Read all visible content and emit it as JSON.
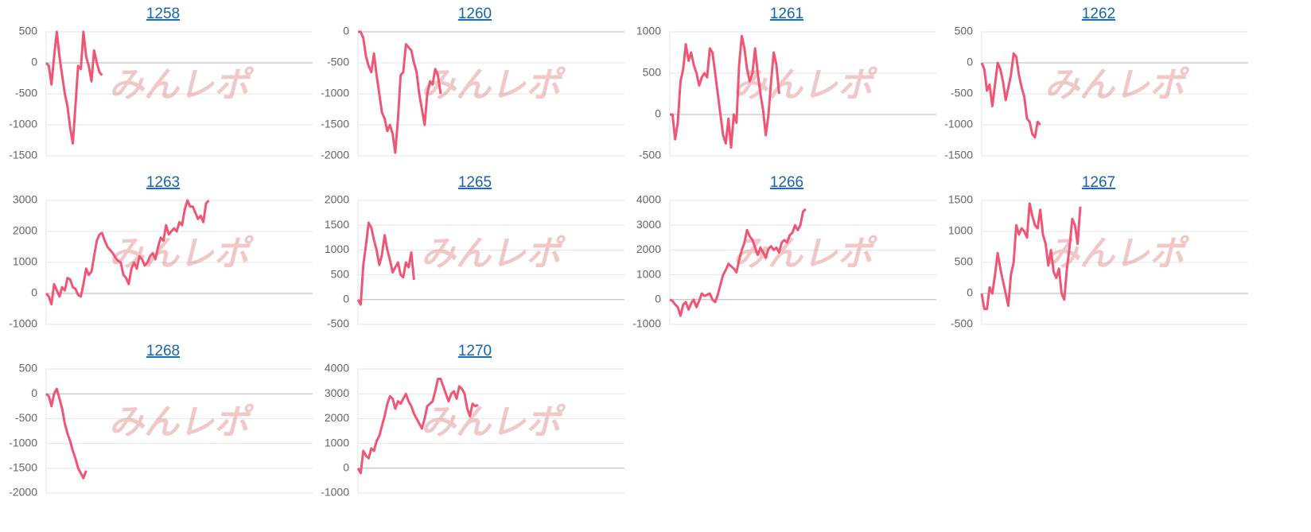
{
  "watermark": "みんレポ",
  "chart_data": [
    {
      "type": "line",
      "title": "1258",
      "color": "#ef5675",
      "xlim": [
        0,
        100
      ],
      "ylim": [
        -1500,
        500
      ],
      "yticks": [
        -1500,
        -1000,
        -500,
        0,
        500
      ],
      "values": [
        0,
        -50,
        -350,
        100,
        500,
        100,
        -200,
        -500,
        -700,
        -1050,
        -1300,
        -700,
        -50,
        -100,
        500,
        100,
        -50,
        -300,
        200,
        0,
        -150,
        -200
      ]
    },
    {
      "type": "line",
      "title": "1260",
      "color": "#ef5675",
      "xlim": [
        0,
        100
      ],
      "ylim": [
        -2000,
        0
      ],
      "yticks": [
        -2000,
        -1500,
        -1000,
        -500,
        0
      ],
      "values": [
        0,
        0,
        -100,
        -400,
        -550,
        -650,
        -350,
        -700,
        -1000,
        -1300,
        -1400,
        -1600,
        -1500,
        -1650,
        -1950,
        -1400,
        -700,
        -650,
        -200,
        -250,
        -300,
        -500,
        -650,
        -1000,
        -1250,
        -1500,
        -1000,
        -800,
        -850,
        -600,
        -700,
        -1000
      ]
    },
    {
      "type": "line",
      "title": "1261",
      "color": "#ef5675",
      "xlim": [
        0,
        100
      ],
      "ylim": [
        -500,
        1000
      ],
      "yticks": [
        -500,
        0,
        500,
        1000
      ],
      "values": [
        0,
        0,
        -300,
        -100,
        400,
        550,
        850,
        650,
        750,
        600,
        500,
        350,
        450,
        500,
        450,
        800,
        750,
        500,
        250,
        0,
        -250,
        -350,
        -50,
        -400,
        0,
        -100,
        600,
        950,
        800,
        550,
        400,
        500,
        800,
        500,
        250,
        50,
        -250,
        0,
        400,
        750,
        600,
        250
      ]
    },
    {
      "type": "line",
      "title": "1262",
      "color": "#ef5675",
      "xlim": [
        0,
        100
      ],
      "ylim": [
        -1500,
        500
      ],
      "yticks": [
        -1500,
        -1000,
        -500,
        0,
        500
      ],
      "values": [
        0,
        -100,
        -450,
        -350,
        -700,
        -350,
        0,
        -100,
        -300,
        -600,
        -400,
        -200,
        150,
        100,
        -200,
        -400,
        -550,
        -900,
        -950,
        -1150,
        -1200,
        -950,
        -1000
      ]
    },
    {
      "type": "line",
      "title": "1263",
      "color": "#ef5675",
      "xlim": [
        0,
        100
      ],
      "ylim": [
        -1000,
        3000
      ],
      "yticks": [
        -1000,
        0,
        1000,
        2000,
        3000
      ],
      "values": [
        0,
        -100,
        -350,
        300,
        100,
        -100,
        200,
        100,
        500,
        450,
        200,
        150,
        -50,
        -100,
        300,
        800,
        600,
        700,
        1200,
        1700,
        1900,
        1950,
        1700,
        1500,
        1400,
        1300,
        1150,
        1050,
        1000,
        600,
        500,
        300,
        800,
        1000,
        800,
        1200,
        1100,
        900,
        1000,
        1200,
        1300,
        1100,
        1500,
        1800,
        1700,
        2200,
        1900,
        2000,
        2100,
        2000,
        2300,
        2200,
        2700,
        3000,
        2800,
        2800,
        2600,
        2400,
        2500,
        2300,
        2900,
        3000
      ]
    },
    {
      "type": "line",
      "title": "1265",
      "color": "#ef5675",
      "xlim": [
        0,
        100
      ],
      "ylim": [
        -500,
        2000
      ],
      "yticks": [
        -500,
        0,
        500,
        1000,
        1500,
        2000
      ],
      "values": [
        0,
        -100,
        700,
        1100,
        1550,
        1450,
        1200,
        1000,
        700,
        900,
        1300,
        1000,
        800,
        550,
        650,
        750,
        500,
        450,
        750,
        650,
        950,
        400
      ]
    },
    {
      "type": "line",
      "title": "1266",
      "color": "#ef5675",
      "xlim": [
        0,
        100
      ],
      "ylim": [
        -1000,
        4000
      ],
      "yticks": [
        -1000,
        0,
        1000,
        2000,
        3000,
        4000
      ],
      "values": [
        0,
        -50,
        -200,
        -300,
        -650,
        -200,
        -100,
        -400,
        -150,
        0,
        -300,
        -50,
        250,
        150,
        200,
        250,
        0,
        -100,
        200,
        600,
        1000,
        1200,
        1450,
        1350,
        1250,
        1100,
        1600,
        2000,
        2300,
        2800,
        2550,
        2400,
        2100,
        1800,
        2100,
        1900,
        1700,
        2050,
        2150,
        2000,
        2100,
        1900,
        2300,
        2400,
        2300,
        2600,
        2700,
        3000,
        2800,
        3000,
        3550,
        3650
      ]
    },
    {
      "type": "line",
      "title": "1267",
      "color": "#ef5675",
      "xlim": [
        0,
        100
      ],
      "ylim": [
        -500,
        1500
      ],
      "yticks": [
        -500,
        0,
        500,
        1000,
        1500
      ],
      "values": [
        0,
        -250,
        -250,
        100,
        0,
        300,
        650,
        400,
        200,
        0,
        -200,
        300,
        500,
        1100,
        950,
        1050,
        1000,
        900,
        1450,
        1250,
        1100,
        1050,
        1350,
        950,
        800,
        450,
        700,
        350,
        250,
        400,
        0,
        -100,
        400,
        750,
        1200,
        1100,
        800,
        1400
      ]
    },
    {
      "type": "line",
      "title": "1268",
      "color": "#ef5675",
      "xlim": [
        0,
        100
      ],
      "ylim": [
        -2000,
        500
      ],
      "yticks": [
        -2000,
        -1500,
        -1000,
        -500,
        0,
        500
      ],
      "values": [
        0,
        -50,
        -250,
        0,
        100,
        -100,
        -300,
        -600,
        -800,
        -950,
        -1150,
        -1300,
        -1500,
        -1600,
        -1700,
        -1550
      ]
    },
    {
      "type": "line",
      "title": "1270",
      "color": "#ef5675",
      "xlim": [
        0,
        100
      ],
      "ylim": [
        -1000,
        4000
      ],
      "yticks": [
        -1000,
        0,
        1000,
        2000,
        3000,
        4000
      ],
      "values": [
        0,
        -200,
        700,
        500,
        400,
        800,
        700,
        1100,
        1300,
        1700,
        2100,
        2600,
        2900,
        2800,
        2400,
        2700,
        2600,
        2800,
        3000,
        2700,
        2500,
        2200,
        2000,
        1800,
        1600,
        2000,
        2500,
        2600,
        2700,
        3100,
        3600,
        3600,
        3300,
        3000,
        2700,
        3000,
        3100,
        2800,
        3300,
        3200,
        3000,
        2400,
        2100,
        2600,
        2500,
        2550
      ]
    }
  ]
}
